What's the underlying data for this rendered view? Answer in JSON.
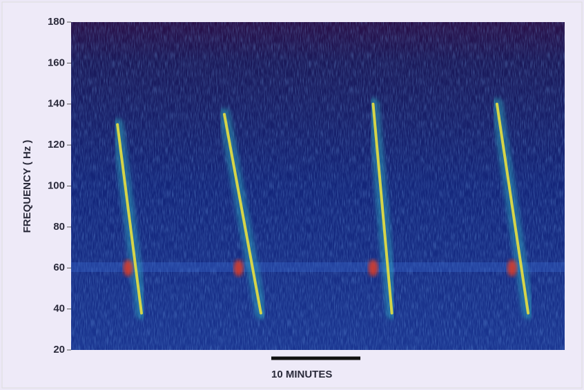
{
  "chart_data": {
    "type": "spectrogram",
    "ylabel": "FREQUENCY ( Hz )",
    "ylim": [
      20,
      180
    ],
    "yticks": [
      20,
      40,
      60,
      80,
      100,
      120,
      140,
      160,
      180
    ],
    "xlim": [
      0,
      55.4
    ],
    "calls": [
      {
        "x": [
          5.2,
          7.9
        ],
        "y": [
          130,
          38
        ]
      },
      {
        "x": [
          17.2,
          21.3
        ],
        "y": [
          135,
          38
        ]
      },
      {
        "x": [
          33.9,
          36.0
        ],
        "y": [
          140,
          38
        ]
      },
      {
        "x": [
          47.8,
          51.3
        ],
        "y": [
          140,
          38
        ]
      }
    ],
    "blobs": {
      "x": [
        6.4,
        18.8,
        33.9,
        49.5
      ],
      "y": [
        60,
        60,
        60,
        60
      ]
    },
    "scale_bar": {
      "length": 10,
      "label": "10 MINUTES"
    }
  }
}
